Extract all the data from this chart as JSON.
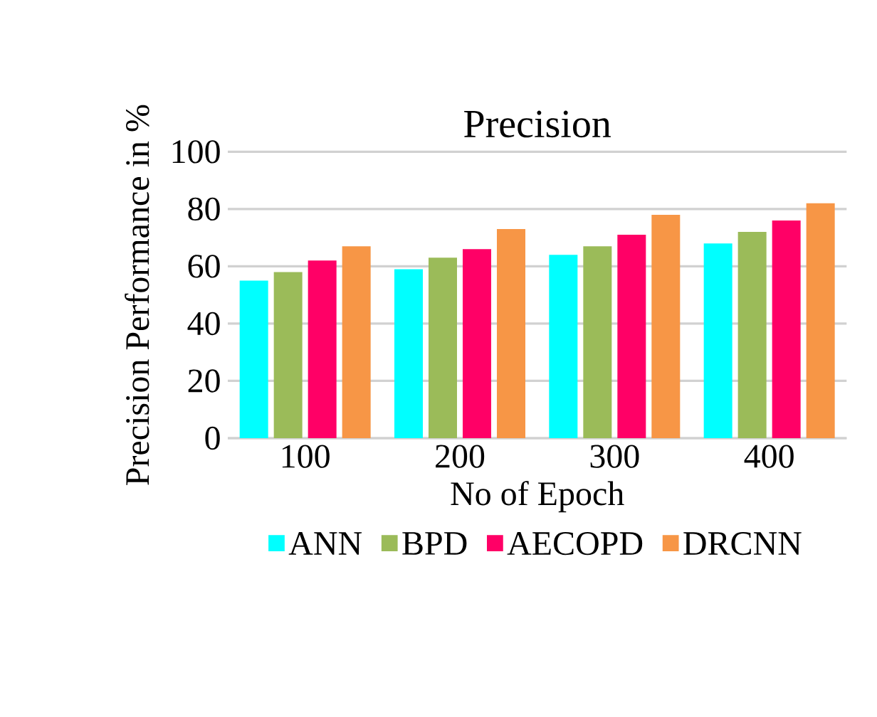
{
  "chart_data": {
    "type": "bar",
    "title": "Precision",
    "xlabel": "No of Epoch",
    "ylabel": "Precision Performance  in %",
    "categories": [
      "100",
      "200",
      "300",
      "400"
    ],
    "series": [
      {
        "name": "ANN",
        "color": "#00ffff",
        "values": [
          55,
          59,
          64,
          68
        ]
      },
      {
        "name": "BPD",
        "color": "#9bbb59",
        "values": [
          58,
          63,
          67,
          72
        ]
      },
      {
        "name": "AECOPD",
        "color": "#ff0066",
        "values": [
          62,
          66,
          71,
          76
        ]
      },
      {
        "name": "DRCNN",
        "color": "#f79646",
        "values": [
          67,
          73,
          78,
          82
        ]
      }
    ],
    "ylim": [
      0,
      100
    ],
    "yticks": [
      0,
      20,
      40,
      60,
      80,
      100
    ],
    "grid": "y",
    "legend": "bottom"
  }
}
